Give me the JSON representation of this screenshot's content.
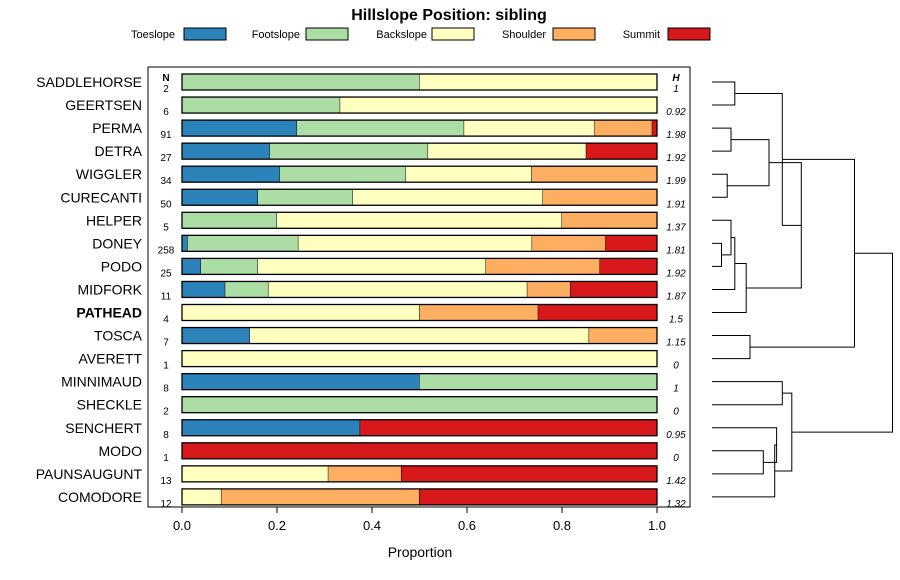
{
  "chart_data": {
    "type": "bar",
    "stacked": true,
    "orientation": "horizontal",
    "title": "Hillslope Position: sibling",
    "xlabel": "Proportion",
    "ylabel": "",
    "xlim": [
      0,
      1
    ],
    "x_ticks": [
      "0.0",
      "0.2",
      "0.4",
      "0.6",
      "0.8",
      "1.0"
    ],
    "n_header": "N",
    "h_header": "H",
    "highlight": "PATHEAD",
    "series": [
      {
        "name": "Toeslope",
        "color": "#2B83BA"
      },
      {
        "name": "Footslope",
        "color": "#ABDDA4"
      },
      {
        "name": "Backslope",
        "color": "#FFFFBF"
      },
      {
        "name": "Shoulder",
        "color": "#FDAE61"
      },
      {
        "name": "Summit",
        "color": "#D7191C"
      }
    ],
    "rows": [
      {
        "name": "SADDLEHORSE",
        "n": "2",
        "h": "1",
        "values": [
          0,
          0.5,
          0.5,
          0,
          0
        ]
      },
      {
        "name": "GEERTSEN",
        "n": "6",
        "h": "0.92",
        "values": [
          0,
          0.333,
          0.667,
          0,
          0
        ]
      },
      {
        "name": "PERMA",
        "n": "91",
        "h": "1.98",
        "values": [
          0.242,
          0.352,
          0.275,
          0.121,
          0.01
        ]
      },
      {
        "name": "DETRA",
        "n": "27",
        "h": "1.92",
        "values": [
          0.185,
          0.333,
          0.333,
          0,
          0.149
        ]
      },
      {
        "name": "WIGGLER",
        "n": "34",
        "h": "1.99",
        "values": [
          0.206,
          0.265,
          0.265,
          0.264,
          0
        ]
      },
      {
        "name": "CURECANTI",
        "n": "50",
        "h": "1.91",
        "values": [
          0.16,
          0.2,
          0.4,
          0.24,
          0
        ]
      },
      {
        "name": "HELPER",
        "n": "5",
        "h": "1.37",
        "values": [
          0,
          0.2,
          0.6,
          0.2,
          0
        ]
      },
      {
        "name": "DONEY",
        "n": "258",
        "h": "1.81",
        "values": [
          0.012,
          0.233,
          0.492,
          0.155,
          0.108
        ]
      },
      {
        "name": "PODO",
        "n": "25",
        "h": "1.92",
        "values": [
          0.04,
          0.12,
          0.48,
          0.24,
          0.12
        ]
      },
      {
        "name": "MIDFORK",
        "n": "11",
        "h": "1.87",
        "values": [
          0.091,
          0.091,
          0.545,
          0.091,
          0.182
        ]
      },
      {
        "name": "PATHEAD",
        "n": "4",
        "h": "1.5",
        "values": [
          0,
          0,
          0.5,
          0.25,
          0.25
        ]
      },
      {
        "name": "TOSCA",
        "n": "7",
        "h": "1.15",
        "values": [
          0.143,
          0,
          0.714,
          0.143,
          0
        ]
      },
      {
        "name": "AVERETT",
        "n": "1",
        "h": "0",
        "values": [
          0,
          0,
          1.0,
          0,
          0
        ]
      },
      {
        "name": "MINNIMAUD",
        "n": "8",
        "h": "1",
        "values": [
          0.5,
          0.5,
          0,
          0,
          0
        ]
      },
      {
        "name": "SHECKLE",
        "n": "2",
        "h": "0",
        "values": [
          0,
          1.0,
          0,
          0,
          0
        ]
      },
      {
        "name": "SENCHERT",
        "n": "8",
        "h": "0.95",
        "values": [
          0.375,
          0,
          0,
          0,
          0.625
        ]
      },
      {
        "name": "MODO",
        "n": "1",
        "h": "0",
        "values": [
          0,
          0,
          0,
          0,
          1.0
        ]
      },
      {
        "name": "PAUNSAUGUNT",
        "n": "13",
        "h": "1.42",
        "values": [
          0,
          0,
          0.308,
          0.154,
          0.538
        ]
      },
      {
        "name": "COMODORE",
        "n": "12",
        "h": "1.32",
        "values": [
          0,
          0,
          0.083,
          0.417,
          0.5
        ]
      }
    ],
    "dendrogram": {
      "description": "hierarchical clustering of rows by hillslope position composition",
      "merges": [
        {
          "a": "SADDLEHORSE",
          "b": "GEERTSEN",
          "height": 0.12
        },
        {
          "a": "PERMA",
          "b": "DETRA",
          "height": 0.1
        },
        {
          "a": "WIGGLER",
          "b": "CURECANTI",
          "height": 0.08
        },
        {
          "a": "m1",
          "b": "m2",
          "height": 0.3
        },
        {
          "a": "DONEY",
          "b": "PODO",
          "height": 0.05
        },
        {
          "a": "HELPER",
          "b": "m4",
          "height": 0.1
        },
        {
          "a": "m5",
          "b": "MIDFORK",
          "height": 0.12
        },
        {
          "a": "m6",
          "b": "PATHEAD",
          "height": 0.18
        },
        {
          "a": "m3",
          "b": "m7",
          "height": 0.47
        },
        {
          "a": "m0",
          "b": "m8",
          "height": 0.37
        },
        {
          "a": "TOSCA",
          "b": "AVERETT",
          "height": 0.2
        },
        {
          "a": "m9",
          "b": "m10",
          "height": 0.75
        },
        {
          "a": "MINNIMAUD",
          "b": "SHECKLE",
          "height": 0.37
        },
        {
          "a": "MODO",
          "b": "PAUNSAUGUNT",
          "height": 0.27
        },
        {
          "a": "SENCHERT",
          "b": "m13",
          "height": 0.34
        },
        {
          "a": "m14",
          "b": "COMODORE",
          "height": 0.33
        },
        {
          "a": "m12",
          "b": "m15",
          "height": 0.42
        },
        {
          "a": "m11",
          "b": "m16",
          "height": 0.95
        }
      ]
    }
  }
}
